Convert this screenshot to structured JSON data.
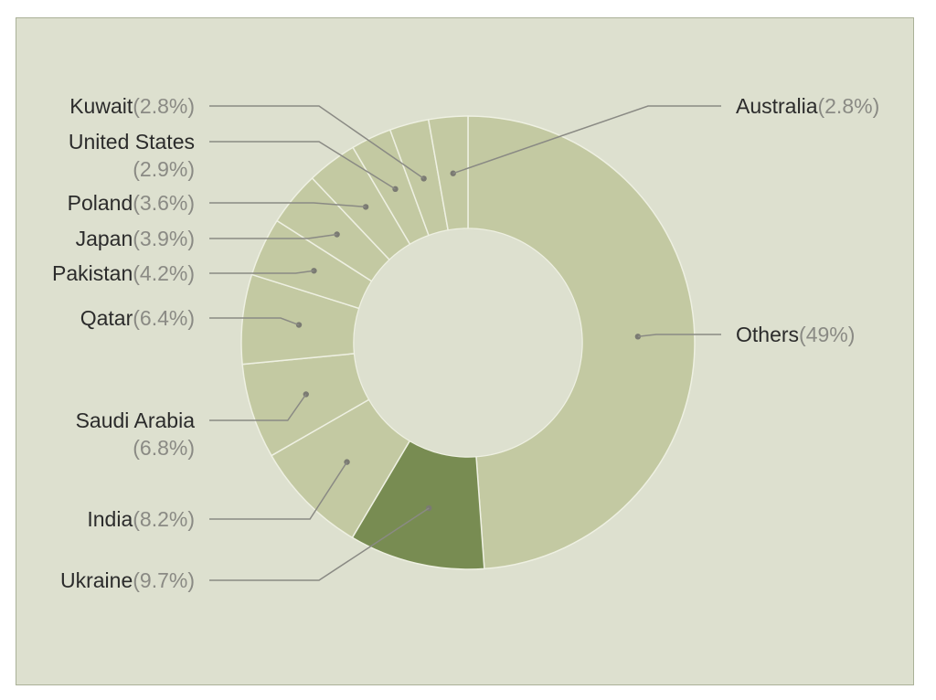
{
  "chart_data": {
    "type": "pie",
    "donut": true,
    "colors": {
      "default": "#c3c9a2",
      "highlight": "#788c52",
      "hole": "#dde0cf"
    },
    "slices": [
      {
        "label": "Others",
        "pct_text": "(49%)",
        "value": 49.0,
        "highlight": false
      },
      {
        "label": "Ukraine",
        "pct_text": "(9.7%)",
        "value": 9.7,
        "highlight": true
      },
      {
        "label": "India",
        "pct_text": "(8.2%)",
        "value": 8.2,
        "highlight": false
      },
      {
        "label": "Saudi Arabia",
        "pct_text": "(6.8%)",
        "value": 6.8,
        "highlight": false
      },
      {
        "label": "Qatar",
        "pct_text": "(6.4%)",
        "value": 6.4,
        "highlight": false
      },
      {
        "label": "Pakistan",
        "pct_text": "(4.2%)",
        "value": 4.2,
        "highlight": false
      },
      {
        "label": "Japan",
        "pct_text": "(3.9%)",
        "value": 3.9,
        "highlight": false
      },
      {
        "label": "Poland",
        "pct_text": "(3.6%)",
        "value": 3.6,
        "highlight": false
      },
      {
        "label": "United States",
        "pct_text": "(2.9%)",
        "value": 2.9,
        "highlight": false
      },
      {
        "label": "Kuwait",
        "pct_text": "(2.8%)",
        "value": 2.8,
        "highlight": false
      },
      {
        "label": "Australia",
        "pct_text": "(2.8%)",
        "value": 2.8,
        "highlight": false
      }
    ]
  }
}
